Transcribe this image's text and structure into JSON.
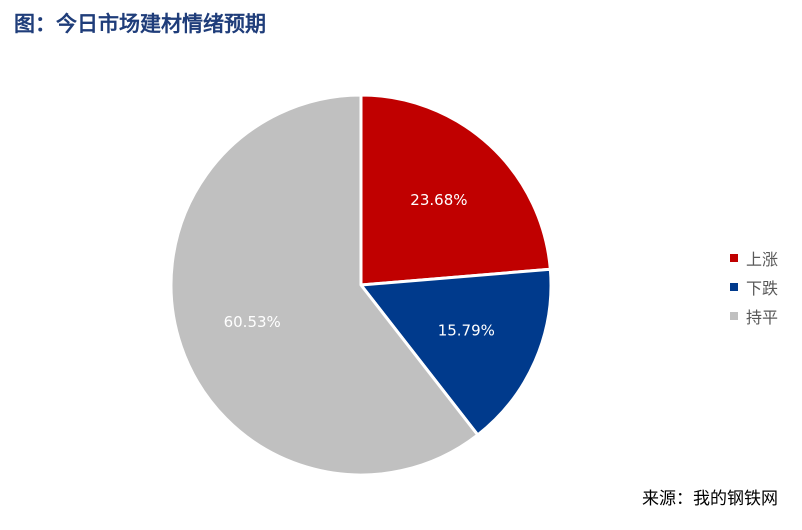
{
  "title": "图：今日市场建材情绪预期",
  "source": "来源：我的钢铁网",
  "chart_data": {
    "type": "pie",
    "categories": [
      "上涨",
      "下跌",
      "持平"
    ],
    "values": [
      23.68,
      15.79,
      60.53
    ],
    "labels": [
      "23.68%",
      "15.79%",
      "60.53%"
    ],
    "colors": [
      "#c00000",
      "#003a8c",
      "#c0c0c0"
    ],
    "label_colors": [
      "#ffffff",
      "#ffffff",
      "#ffffff"
    ],
    "start_angle": "12 o'clock, clockwise",
    "legend_position": "right"
  }
}
